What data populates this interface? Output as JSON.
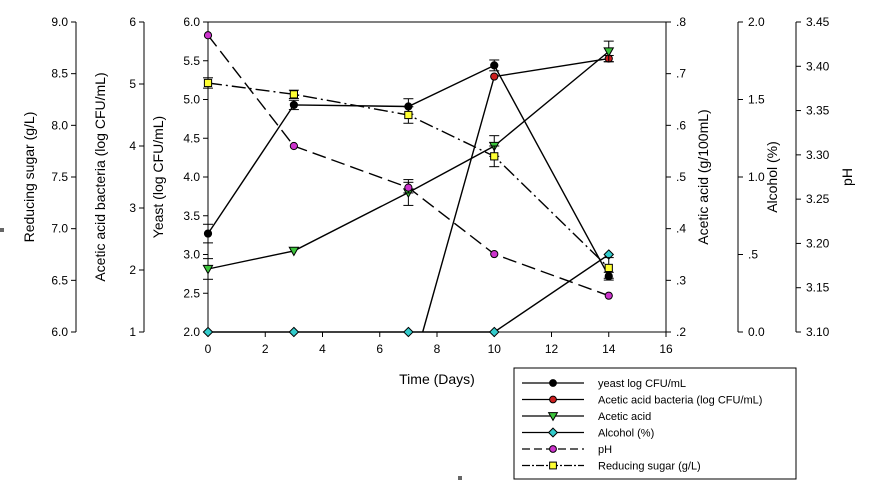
{
  "chart_data": {
    "type": "line",
    "xlabel": "Time (Days)",
    "x_ticks": [
      "0",
      "2",
      "4",
      "6",
      "8",
      "10",
      "12",
      "14",
      "16"
    ],
    "xlim": [
      0,
      16
    ],
    "axes": [
      {
        "id": "sugar",
        "label": "Reducing sugar (g/L)",
        "ylim": [
          6.0,
          9.0
        ],
        "ticks": [
          "6.0",
          "6.5",
          "7.0",
          "7.5",
          "8.0",
          "8.5",
          "9.0"
        ]
      },
      {
        "id": "aab",
        "label": "Acetic acid bacteria (log CFU/mL)",
        "ylim": [
          1,
          6
        ],
        "ticks": [
          "1",
          "2",
          "3",
          "4",
          "5",
          "6"
        ]
      },
      {
        "id": "yeast",
        "label": "Yeast (log CFU/mL)",
        "ylim": [
          2.0,
          6.0
        ],
        "ticks": [
          "2.0",
          "2.5",
          "3.0",
          "3.5",
          "4.0",
          "4.5",
          "5.0",
          "5.5",
          "6.0"
        ]
      },
      {
        "id": "acid",
        "label": "Acetic acid (g/100mL)",
        "ylim": [
          0.2,
          0.8
        ],
        "ticks": [
          ".2",
          ".3",
          ".4",
          ".5",
          ".6",
          ".7",
          ".8"
        ]
      },
      {
        "id": "alcohol",
        "label": "Alcohol (%)",
        "ylim": [
          0.0,
          2.0
        ],
        "ticks": [
          "0.0",
          ".5",
          "1.0",
          "1.5",
          "2.0"
        ]
      },
      {
        "id": "ph",
        "label": "pH",
        "ylim": [
          3.1,
          3.45
        ],
        "ticks": [
          "3.10",
          "3.15",
          "3.20",
          "3.25",
          "3.30",
          "3.35",
          "3.40",
          "3.45"
        ]
      }
    ],
    "series": [
      {
        "name": "yeast log CFU/mL",
        "axis": "yeast",
        "marker": "circle",
        "color": "#000000",
        "dash": "",
        "x": [
          0,
          3,
          7,
          10,
          14
        ],
        "y": [
          3.27,
          4.93,
          4.91,
          5.44,
          2.72
        ],
        "err": [
          0.12,
          0.06,
          0.1,
          0.07,
          0.05
        ]
      },
      {
        "name": "Acetic acid bacteria (log CFU/mL)",
        "axis": "aab",
        "marker": "circle",
        "color": "#cc1f1f",
        "dash": "",
        "x": [
          7.5,
          10,
          14
        ],
        "y": [
          1.0,
          5.12,
          5.41
        ],
        "err": [
          0,
          0,
          0.05
        ]
      },
      {
        "name": "Acetic acid",
        "axis": "acid",
        "marker": "triangle-down",
        "color": "#3cc43c",
        "dash": "",
        "x": [
          0,
          3,
          7,
          10,
          14
        ],
        "y": [
          0.322,
          0.357,
          0.47,
          0.56,
          0.743
        ],
        "err": [
          0.02,
          0,
          0.025,
          0.02,
          0.02
        ]
      },
      {
        "name": "Alcohol (%)",
        "axis": "alcohol",
        "marker": "diamond",
        "color": "#33cccc",
        "dash": "",
        "x": [
          0,
          3,
          7,
          10,
          14
        ],
        "y": [
          0.0,
          0.0,
          0.0,
          0.0,
          0.5
        ],
        "err": [
          0,
          0,
          0,
          0,
          0
        ]
      },
      {
        "name": "pH",
        "axis": "ph",
        "marker": "circle",
        "color": "#cc33cc",
        "dash": "14,6",
        "x": [
          0,
          3,
          7,
          10,
          14
        ],
        "y": [
          3.435,
          3.31,
          3.263,
          3.188,
          3.141
        ],
        "err": [
          0,
          0,
          0.006,
          0,
          0
        ]
      },
      {
        "name": "Reducing sugar (g/L)",
        "axis": "sugar",
        "marker": "square",
        "color": "#ffff33",
        "dash": "14,4,2,4",
        "x": [
          0,
          3,
          7,
          10,
          14
        ],
        "y": [
          8.41,
          8.3,
          8.1,
          7.7,
          6.62
        ],
        "err": [
          0.05,
          0.04,
          0.08,
          0.1,
          0.1
        ]
      }
    ],
    "legend_position": "bottom-right"
  }
}
